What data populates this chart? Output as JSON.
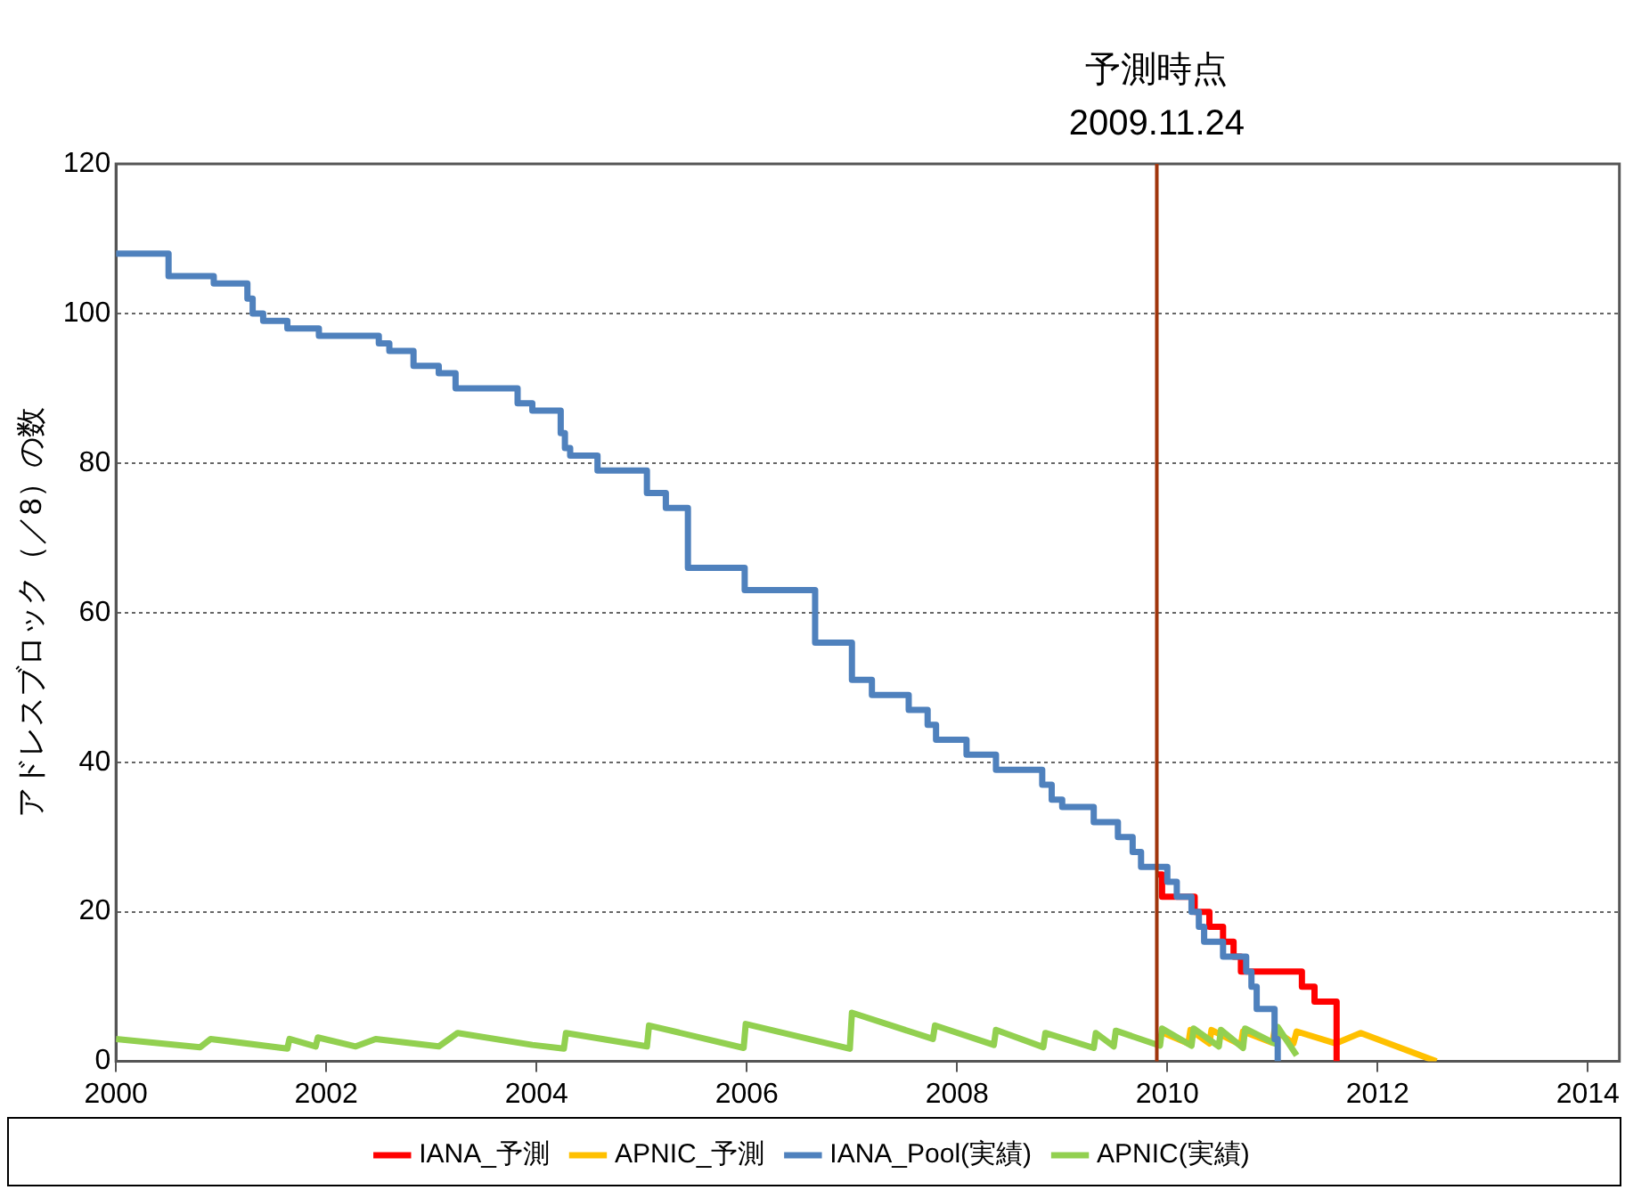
{
  "chart_data": {
    "type": "line",
    "ylabel": "アドレスブロック（／8）の数",
    "xlim": [
      2000,
      2014.3
    ],
    "xticks": [
      2000,
      2002,
      2004,
      2006,
      2008,
      2010,
      2012,
      2014
    ],
    "ylim": [
      0,
      120
    ],
    "yticks": [
      0,
      20,
      40,
      60,
      80,
      100,
      120
    ],
    "grid": "y",
    "legend": "bottom",
    "marker": "none",
    "line_style": "solid",
    "ref_lines": [
      {
        "axis": "x",
        "value": 2009.9,
        "label": "予測時点\n2009.11.24",
        "color": "#a0350c"
      }
    ],
    "series": [
      {
        "name": "IANA_予測",
        "type": "step",
        "color": "#ff0000",
        "x": [
          2009.9,
          2009.95,
          2010.26,
          2010.4,
          2010.53,
          2010.63,
          2010.7,
          2011.28,
          2011.4,
          2011.61
        ],
        "values": [
          25,
          22,
          20,
          18,
          16,
          14,
          12,
          10,
          8,
          0
        ]
      },
      {
        "name": "APNIC_予測",
        "type": "line",
        "color": "#ffc000",
        "x": [
          2009.93,
          2010.2,
          2010.22,
          2010.4,
          2010.42,
          2010.7,
          2010.72,
          2011.0,
          2011.02,
          2011.2,
          2011.23,
          2011.6,
          2011.84,
          2012.56
        ],
        "values": [
          4,
          2.4,
          4.2,
          2.4,
          4.2,
          2.2,
          4,
          2.5,
          4.2,
          2.4,
          4,
          2.4,
          3.8,
          0
        ]
      },
      {
        "name": "IANA_Pool(実績)",
        "type": "step",
        "color": "#4f81bd",
        "x": [
          2000,
          2000.5,
          2000.93,
          2001.25,
          2001.3,
          2001.4,
          2001.63,
          2001.93,
          2002.5,
          2002.6,
          2002.83,
          2003.07,
          2003.23,
          2003.82,
          2003.96,
          2004.23,
          2004.27,
          2004.32,
          2004.58,
          2005.05,
          2005.23,
          2005.44,
          2005.98,
          2006.65,
          2007.0,
          2007.19,
          2007.54,
          2007.72,
          2007.8,
          2008.09,
          2008.37,
          2008.81,
          2008.9,
          2009.0,
          2009.3,
          2009.53,
          2009.67,
          2009.75,
          2010.0,
          2010.09,
          2010.23,
          2010.3,
          2010.35,
          2010.53,
          2010.75,
          2010.8,
          2010.85,
          2011.02,
          2011.05
        ],
        "values": [
          108,
          105,
          104,
          102,
          100,
          99,
          98,
          97,
          96,
          95,
          93,
          92,
          90,
          88,
          87,
          84,
          82,
          81,
          79,
          76,
          74,
          66,
          63,
          56,
          51,
          49,
          47,
          45,
          43,
          41,
          39,
          37,
          35,
          34,
          32,
          30,
          28,
          26,
          24,
          22,
          20,
          18,
          16,
          14,
          12,
          10,
          7,
          3,
          0
        ]
      },
      {
        "name": "APNIC(実績)",
        "type": "line",
        "color": "#92d050",
        "x": [
          2000,
          2000.8,
          2000.9,
          2001.63,
          2001.65,
          2001.9,
          2001.92,
          2002.28,
          2002.47,
          2003.07,
          2003.25,
          2003.96,
          2004.26,
          2004.28,
          2005.05,
          2005.07,
          2005.97,
          2005.99,
          2006.98,
          2007.0,
          2007.77,
          2007.79,
          2008.35,
          2008.37,
          2008.82,
          2008.84,
          2009.3,
          2009.32,
          2009.49,
          2009.51,
          2009.93,
          2009.95,
          2010.23,
          2010.25,
          2010.49,
          2010.51,
          2010.72,
          2010.74,
          2011.02,
          2011.05,
          2011.23
        ],
        "values": [
          3,
          1.9,
          3,
          1.7,
          3,
          2,
          3.2,
          2,
          3,
          2,
          3.8,
          2.2,
          1.7,
          3.8,
          2,
          4.8,
          1.8,
          5,
          1.7,
          6.5,
          3,
          4.8,
          2.2,
          4.2,
          1.9,
          3.8,
          1.8,
          3.8,
          2,
          4.1,
          2.1,
          4.4,
          2.1,
          4.4,
          2,
          4.2,
          1.8,
          4.4,
          2.4,
          4.6,
          0.8
        ]
      }
    ]
  }
}
